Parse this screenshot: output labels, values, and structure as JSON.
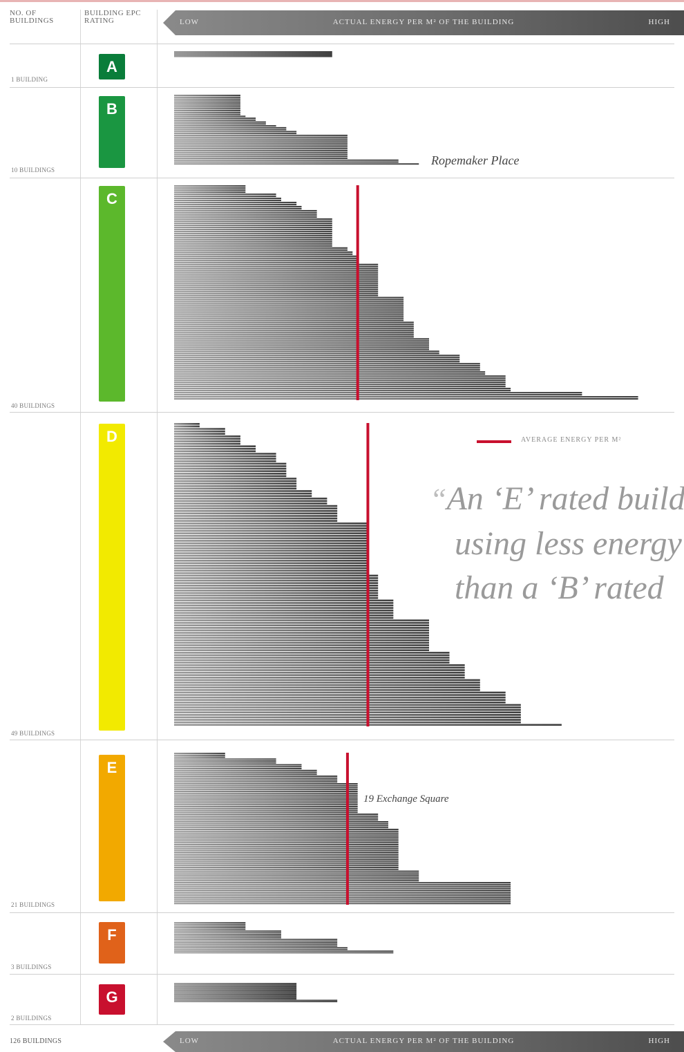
{
  "header": {
    "col_count": "NO. OF BUILDINGS",
    "col_rating": "BUILDING EPC RATING",
    "axis_low": "LOW",
    "axis_title": "ACTUAL ENERGY PER M² OF THE BUILDING",
    "axis_high": "HIGH"
  },
  "footer": {
    "total": "126 BUILDINGS",
    "axis_low": "LOW",
    "axis_title": "ACTUAL ENERGY PER M² OF THE BUILDING",
    "axis_high": "HIGH"
  },
  "legend": {
    "label": "AVERAGE ENERGY PER M²",
    "color": "#c8102e"
  },
  "quote": {
    "open": "“",
    "line1": "An ‘E’ rated building",
    "line2": "using less energy",
    "line3": "than a ‘B’ rated"
  },
  "colors": {
    "A": "#0a7d3a",
    "B": "#1a9641",
    "C": "#5cb82c",
    "D": "#f2ea00",
    "E": "#f2a900",
    "F": "#e0621a",
    "G": "#c8102e",
    "bar": "#6e6e6e",
    "average": "#c8102e"
  },
  "chart_data": {
    "type": "bar",
    "orientation": "horizontal",
    "x_scale": "relative 0-100 (low to high actual energy per m²)",
    "groups": [
      {
        "rating": "A",
        "count_label": "1 BUILDING",
        "values": [
          31
        ],
        "average": null,
        "annotation": null
      },
      {
        "rating": "B",
        "count_label": "10 BUILDINGS",
        "values": [
          13,
          13,
          13,
          13,
          13,
          13,
          13,
          13,
          13,
          13,
          13,
          14,
          16,
          16,
          18,
          18,
          20,
          22,
          22,
          24,
          24,
          34,
          34,
          34,
          34,
          34,
          34,
          34,
          34,
          34,
          34,
          34,
          34,
          34,
          44,
          44,
          48
        ],
        "average": null,
        "annotation": {
          "text": "Ropemaker Place",
          "row": 36
        }
      },
      {
        "rating": "C",
        "count_label": "40 BUILDINGS",
        "values": [
          14,
          14,
          14,
          14,
          20,
          20,
          21,
          21,
          24,
          24,
          25,
          25,
          28,
          28,
          28,
          28,
          31,
          31,
          31,
          31,
          31,
          31,
          31,
          31,
          31,
          31,
          31,
          31,
          31,
          31,
          34,
          34,
          35,
          35,
          36,
          36,
          36,
          36,
          40,
          40,
          40,
          40,
          40,
          40,
          40,
          40,
          40,
          40,
          40,
          40,
          40,
          40,
          40,
          40,
          45,
          45,
          45,
          45,
          45,
          45,
          45,
          45,
          45,
          45,
          45,
          45,
          47,
          47,
          47,
          47,
          47,
          47,
          47,
          47,
          50,
          50,
          50,
          50,
          50,
          50,
          52,
          52,
          56,
          56,
          56,
          56,
          60,
          60,
          60,
          60,
          61,
          61,
          65,
          65,
          65,
          65,
          65,
          65,
          66,
          66,
          80,
          80,
          91,
          91
        ],
        "average": 36,
        "annotation": null
      },
      {
        "rating": "D",
        "count_label": "49 BUILDINGS",
        "values": [
          5,
          5,
          10,
          10,
          10,
          13,
          13,
          13,
          13,
          16,
          16,
          16,
          20,
          20,
          20,
          20,
          22,
          22,
          22,
          22,
          22,
          22,
          24,
          24,
          24,
          24,
          24,
          27,
          27,
          27,
          30,
          30,
          30,
          32,
          32,
          32,
          32,
          32,
          32,
          32,
          38,
          38,
          38,
          38,
          38,
          38,
          38,
          38,
          38,
          38,
          38,
          38,
          38,
          38,
          38,
          38,
          38,
          38,
          38,
          38,
          38,
          40,
          40,
          40,
          40,
          40,
          40,
          40,
          40,
          40,
          40,
          43,
          43,
          43,
          43,
          43,
          43,
          43,
          43,
          50,
          50,
          50,
          50,
          50,
          50,
          50,
          50,
          50,
          50,
          50,
          50,
          50,
          54,
          54,
          54,
          54,
          54,
          57,
          57,
          57,
          57,
          57,
          57,
          60,
          60,
          60,
          60,
          60,
          65,
          65,
          65,
          65,
          65,
          68,
          68,
          68,
          68,
          68,
          68,
          68,
          68,
          76
        ],
        "average": 38,
        "annotation": null
      },
      {
        "rating": "E",
        "count_label": "21 BUILDINGS",
        "values": [
          10,
          10,
          10,
          20,
          20,
          20,
          25,
          25,
          25,
          28,
          28,
          28,
          32,
          32,
          32,
          32,
          36,
          36,
          36,
          36,
          36,
          36,
          36,
          36,
          36,
          36,
          36,
          36,
          36,
          36,
          36,
          36,
          40,
          40,
          40,
          40,
          42,
          42,
          42,
          42,
          44,
          44,
          44,
          44,
          44,
          44,
          44,
          44,
          44,
          44,
          44,
          44,
          44,
          44,
          44,
          44,
          44,
          44,
          44,
          44,
          44,
          44,
          48,
          48,
          48,
          48,
          48,
          48,
          66,
          66,
          66,
          66,
          66,
          66,
          66,
          66,
          66,
          66,
          66,
          66
        ],
        "average": 34,
        "annotation": {
          "text": "19 Exchange Square",
          "row": 10
        }
      },
      {
        "rating": "F",
        "count_label": "3 BUILDINGS",
        "values": [
          14,
          14,
          14,
          14,
          14,
          21,
          21,
          21,
          21,
          21,
          32,
          32,
          32,
          32,
          32,
          34,
          34,
          43,
          43
        ],
        "average": null,
        "annotation": null
      },
      {
        "rating": "G",
        "count_label": "2 BUILDINGS",
        "values": [
          24,
          24,
          24,
          24,
          24,
          24,
          24,
          24,
          24,
          24,
          24,
          24,
          24,
          24,
          24,
          24,
          24,
          24,
          24,
          24,
          32,
          32,
          32
        ],
        "average": null,
        "annotation": null
      }
    ]
  }
}
